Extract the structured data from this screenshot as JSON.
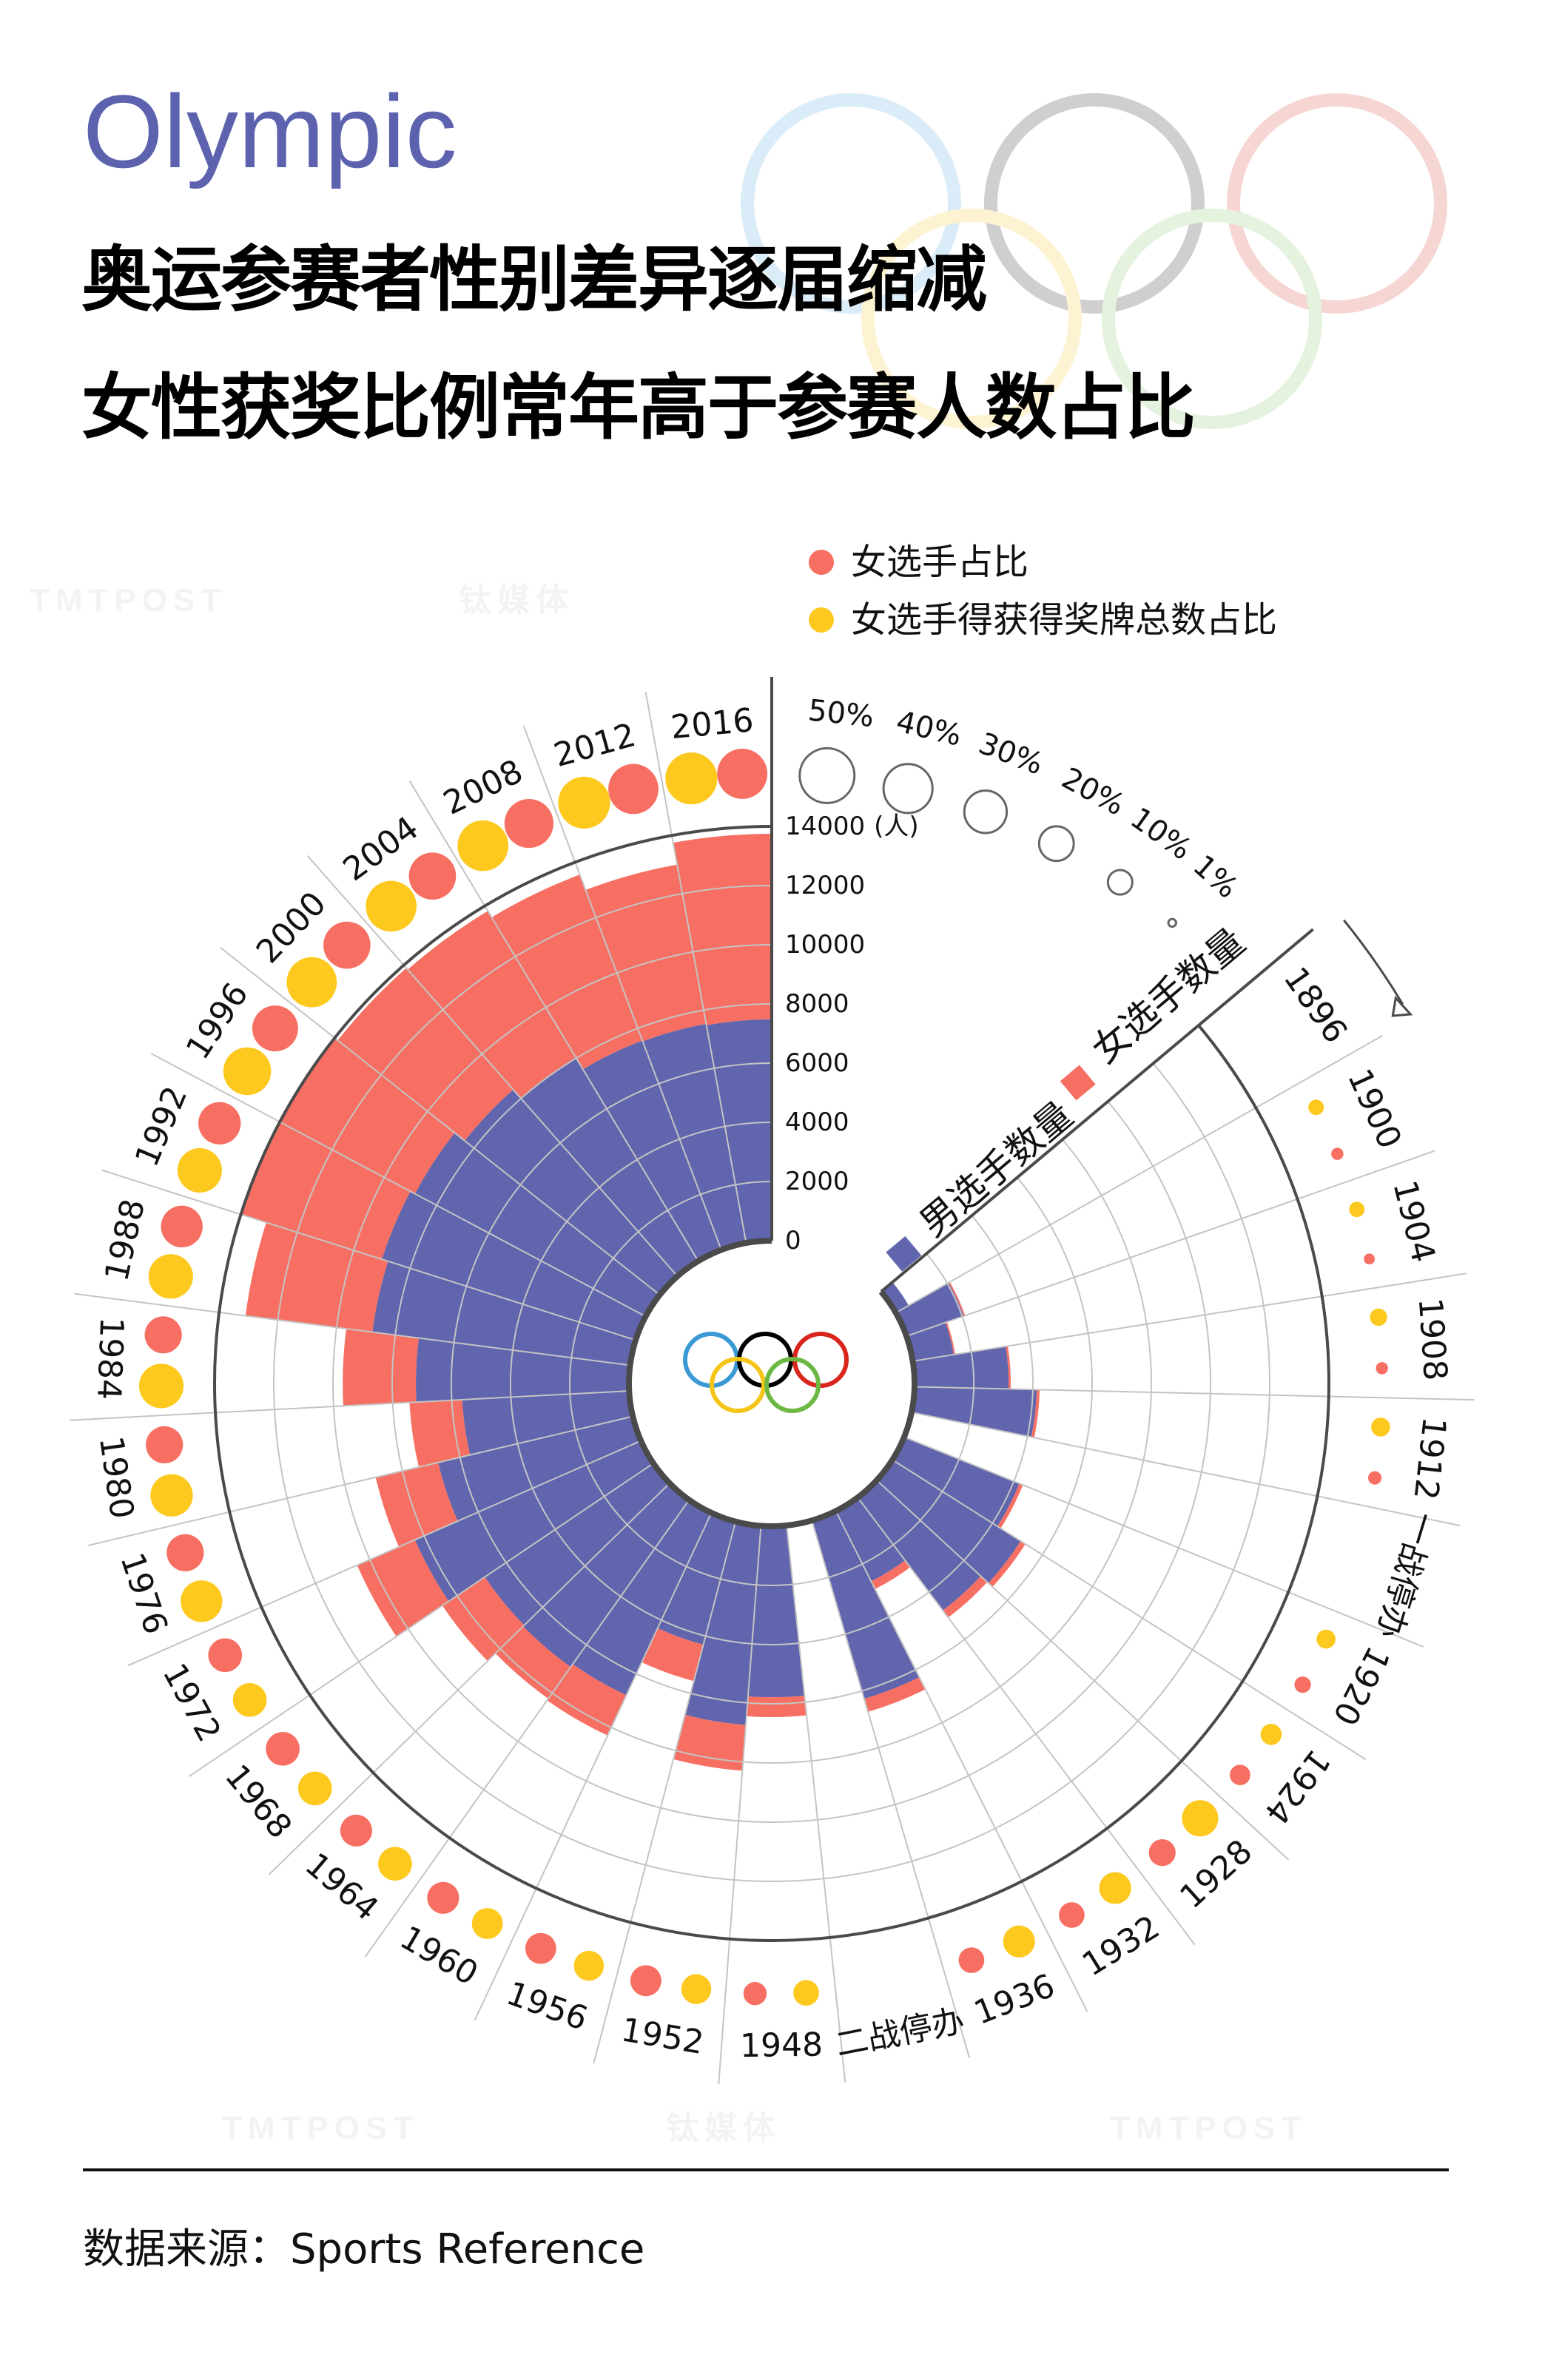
{
  "header": {
    "brand": "Olympic",
    "title_line1": "奥运参赛者性别差异逐届缩减",
    "title_line2": "女性获奖比例常年高于参赛人数占比"
  },
  "watermark": [
    "TMTPOST",
    "钛媒体"
  ],
  "footer": {
    "source": "数据来源：Sports Reference"
  },
  "colors": {
    "brand": "#5c62ae",
    "men": "#6065ae",
    "women": "#f76f62",
    "medal": "#fdc91f",
    "axis": "#4a4a4a",
    "grid": "#c4c4c4",
    "rings": [
      "#3b9ad6",
      "#000000",
      "#d8261c",
      "#f5c518",
      "#6cb842"
    ]
  },
  "chart_data": {
    "type": "bar",
    "layout": "radial stacked bar, clockwise from 1896",
    "categories": [
      "1896",
      "1900",
      "1904",
      "1908",
      "1912",
      "一战停办",
      "1920",
      "1924",
      "1928",
      "1932",
      "1936",
      "二战停办",
      "1948",
      "1952",
      "1956",
      "1960",
      "1964",
      "1968",
      "1972",
      "1976",
      "1980",
      "1984",
      "1988",
      "1992",
      "1996",
      "2000",
      "2004",
      "2008",
      "2012",
      "2016"
    ],
    "series": [
      {
        "name": "男选手数量",
        "color": "#6065ae",
        "values": [
          500,
          2050,
          1400,
          3180,
          4130,
          null,
          4200,
          5130,
          4780,
          2660,
          6280,
          null,
          5780,
          6750,
          4300,
          6800,
          6920,
          6870,
          8340,
          6760,
          5650,
          7200,
          8780,
          9000,
          8830,
          8400,
          8030,
          7560,
          7530,
          7480
        ]
      },
      {
        "name": "女选手数量",
        "color": "#f76f62",
        "values": [
          0,
          50,
          50,
          70,
          100,
          null,
          130,
          190,
          300,
          290,
          460,
          null,
          670,
          1550,
          1270,
          1500,
          1310,
          1730,
          2130,
          2170,
          1780,
          2470,
          4320,
          4950,
          5170,
          5470,
          5770,
          5990,
          5470,
          6270
        ]
      }
    ],
    "dot_series": [
      {
        "name": "女选手占比",
        "color": "#f76f62",
        "unit": "%",
        "values": [
          0,
          2.5,
          2,
          2.5,
          3,
          null,
          4.5,
          7,
          12,
          11,
          11,
          null,
          9,
          16,
          16,
          17,
          17,
          19,
          19,
          23,
          23,
          23,
          29,
          30,
          35,
          37,
          37,
          40,
          42,
          42
        ]
      },
      {
        "name": "女选手得获得奖牌总数占比",
        "color": "#fdc91f",
        "unit": "%",
        "values": [
          0,
          4,
          4,
          5,
          6,
          null,
          6,
          7.5,
          22,
          17,
          17,
          null,
          11,
          15,
          15,
          16,
          19,
          19,
          19,
          29,
          30,
          33,
          33,
          33,
          38,
          42,
          43,
          43,
          45,
          45
        ]
      }
    ],
    "size_legend": [
      "50%",
      "40%",
      "30%",
      "20%",
      "10%",
      "1%"
    ],
    "size_legend_values": [
      50,
      40,
      30,
      20,
      10,
      1
    ],
    "ylim": [
      0,
      14000
    ],
    "yticks": [
      "0",
      "2000",
      "4000",
      "6000",
      "8000",
      "10000",
      "12000",
      "14000"
    ],
    "ytick_values": [
      0,
      2000,
      4000,
      6000,
      8000,
      10000,
      12000,
      14000
    ],
    "yunit": "(人)",
    "grid": true
  }
}
